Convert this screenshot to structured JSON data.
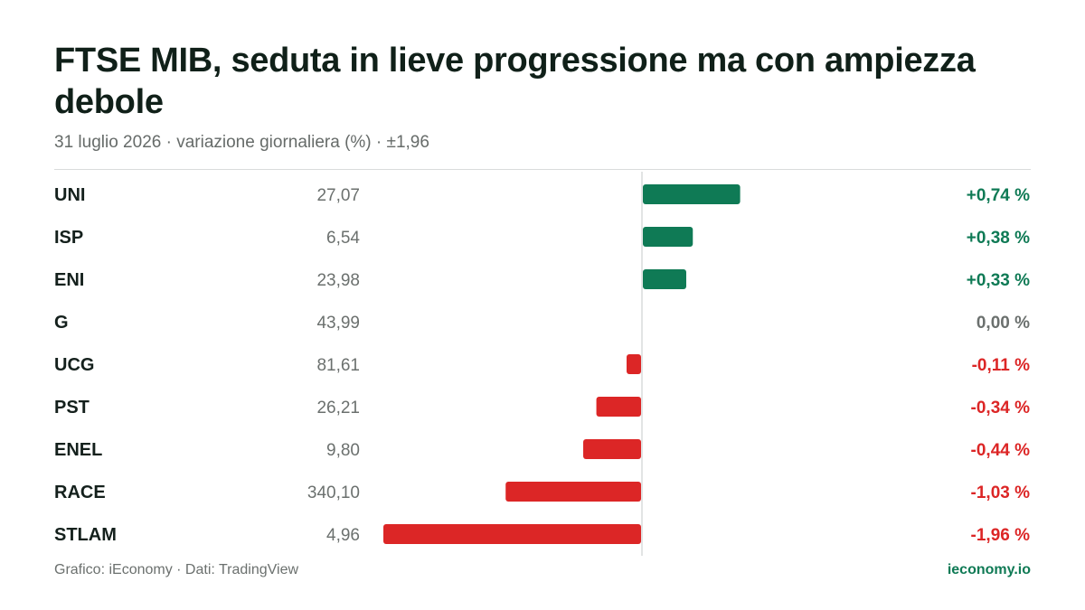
{
  "header": {
    "title": "FTSE MIB, seduta in lieve progressione ma con ampiezza debole",
    "subtitle": "31 luglio 2026 · variazione giornaliera (%) · ±1,96"
  },
  "footer": {
    "credit": "Grafico: iEconomy · Dati: TradingView",
    "brand": "ieconomy.io"
  },
  "colors": {
    "positive": "#0f7a55",
    "negative": "#dc2626",
    "neutral": "#6b706e"
  },
  "chart_data": {
    "type": "bar",
    "orientation": "horizontal",
    "title": "FTSE MIB, seduta in lieve progressione ma con ampiezza debole",
    "subtitle": "31 luglio 2026 · variazione giornaliera (%) · ±1,96",
    "xlim": [
      -1.96,
      1.96
    ],
    "grid": false,
    "legend": "none",
    "categories": [
      "UNI",
      "ISP",
      "ENI",
      "G",
      "UCG",
      "PST",
      "ENEL",
      "RACE",
      "STLAM"
    ],
    "prices": [
      27.07,
      6.54,
      23.98,
      43.99,
      81.61,
      26.21,
      9.8,
      340.1,
      4.96
    ],
    "price_labels": [
      "27,07",
      "6,54",
      "23,98",
      "43,99",
      "81,61",
      "26,21",
      "9,80",
      "340,10",
      "4,96"
    ],
    "values": [
      0.74,
      0.38,
      0.33,
      0.0,
      -0.11,
      -0.34,
      -0.44,
      -1.03,
      -1.96
    ],
    "value_labels": [
      "+0,74 %",
      "+0,38 %",
      "+0,33 %",
      "0,00 %",
      "-0,11 %",
      "-0,34 %",
      "-0,44 %",
      "-1,03 %",
      "-1,96 %"
    ]
  }
}
